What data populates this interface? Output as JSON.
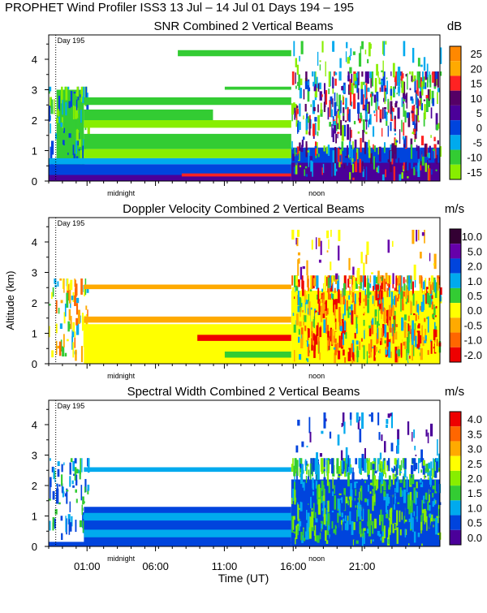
{
  "figure": {
    "title": "PROPHET Wind Profiler ISS3  13 Jul – 14 Jul 01 Days 194 – 195",
    "ylabel": "Altitude (km)",
    "xlabel": "Time (UT)",
    "time_ticks": [
      "01:00",
      "06:00",
      "11:00",
      "16:00",
      "21:00"
    ],
    "day_marker": "Day 195",
    "midnight_label": "midnight",
    "noon_label": "noon"
  },
  "chart_data": [
    {
      "type": "heatmap",
      "title": "SNR Combined 2 Vertical Beams",
      "unit": "dB",
      "xlabel": "Time (UT)",
      "ylabel": "Altitude (km)",
      "ylim": [
        0,
        4.8
      ],
      "yticks": [
        "0",
        "1",
        "2",
        "3",
        "4"
      ],
      "colorbar_labels": [
        "25",
        "20",
        "15",
        "10",
        "5",
        "0",
        "-5",
        "-10",
        "-15"
      ],
      "colors": [
        "#FF8800",
        "#FFAA00",
        "#FF2222",
        "#550066",
        "#4B0099",
        "#0044DD",
        "#00AAEE",
        "#33CC33",
        "#88EE00"
      ]
    },
    {
      "type": "heatmap",
      "title": "Doppler Velocity Combined 2 Vertical Beams",
      "unit": "m/s",
      "xlabel": "Time (UT)",
      "ylabel": "Altitude (km)",
      "ylim": [
        0,
        4.8
      ],
      "yticks": [
        "0",
        "1",
        "2",
        "3",
        "4"
      ],
      "colorbar_labels": [
        "10.0",
        "5.0",
        "2.0",
        "1.0",
        "0.5",
        "0.0",
        "-0.5",
        "-1.0",
        "-2.0"
      ],
      "colors": [
        "#330033",
        "#6600AA",
        "#0044DD",
        "#00AAEE",
        "#33CC33",
        "#FFFF00",
        "#FFAA00",
        "#FF6600",
        "#EE0000"
      ]
    },
    {
      "type": "heatmap",
      "title": "Spectral Width Combined 2 Vertical Beams",
      "unit": "m/s",
      "xlabel": "Time (UT)",
      "ylabel": "Altitude (km)",
      "ylim": [
        0,
        4.8
      ],
      "yticks": [
        "0",
        "1",
        "2",
        "3",
        "4"
      ],
      "colorbar_labels": [
        "4.0",
        "3.5",
        "3.0",
        "2.5",
        "2.0",
        "1.5",
        "1.0",
        "0.5",
        "0.0"
      ],
      "colors": [
        "#EE0000",
        "#FF6600",
        "#FFAA00",
        "#FFFF00",
        "#88EE00",
        "#33CC33",
        "#00AAEE",
        "#0044DD",
        "#4B0099"
      ]
    }
  ]
}
